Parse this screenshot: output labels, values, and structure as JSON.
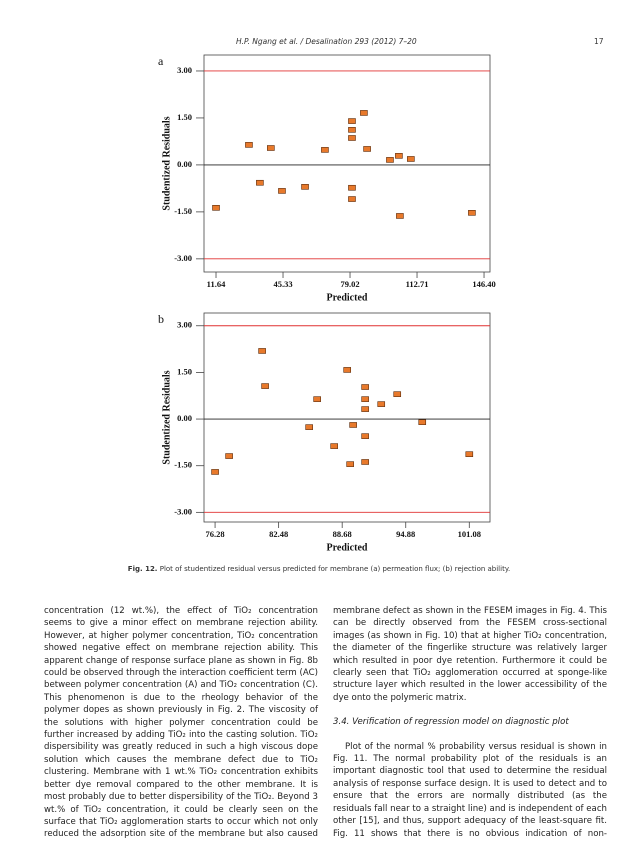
{
  "header": {
    "running_title": "H.P. Ngang et al. / Desalination 293 (2012) 7–20",
    "page": "17"
  },
  "chart_data": [
    {
      "type": "scatter",
      "panel": "a",
      "ylabel": "Studentized Residuals",
      "xlabel": "Predicted",
      "color": "#e8792b",
      "x": [
        11.64,
        28.2,
        33.7,
        39.2,
        44.8,
        56.4,
        66.4,
        80.0,
        80.0,
        80.0,
        80.0,
        80.0,
        86.0,
        87.6,
        99.1,
        103.6,
        104.1,
        109.6,
        140.3
      ],
      "values": [
        -1.37,
        0.64,
        -0.57,
        0.54,
        -0.83,
        -0.7,
        0.48,
        -0.73,
        1.4,
        1.12,
        0.86,
        -1.09,
        1.66,
        0.51,
        0.16,
        0.29,
        -1.63,
        0.19,
        -1.53
      ],
      "xlim": [
        5.6,
        149.4
      ],
      "ylim": [
        -3.42,
        3.51
      ],
      "xticks": [
        11.64,
        45.33,
        79.02,
        112.71,
        {
          "value": 146.4,
          "label": "146.40"
        }
      ],
      "yticks": [
        {
          "value": 3,
          "label": "3.00"
        },
        {
          "value": 1.5,
          "label": "1.50"
        },
        {
          "value": 0,
          "label": "0.00"
        },
        {
          "value": -1.5,
          "label": "-1.50"
        },
        {
          "value": -3,
          "label": "-3.00"
        }
      ]
    },
    {
      "type": "scatter",
      "panel": "b",
      "ylabel": "Studentized Residuals",
      "xlabel": "Predicted",
      "color": "#e8792b",
      "x": [
        76.28,
        77.65,
        80.87,
        81.16,
        85.46,
        86.24,
        87.9,
        89.17,
        89.46,
        89.75,
        90.92,
        90.92,
        90.92,
        90.92,
        90.92,
        92.49,
        94.05,
        96.49,
        101.08
      ],
      "values": [
        -1.7,
        -1.19,
        2.19,
        1.06,
        -0.26,
        0.64,
        -0.87,
        1.58,
        -1.45,
        -0.19,
        1.03,
        0.64,
        0.32,
        -0.55,
        -1.38,
        0.48,
        0.8,
        -0.1,
        -1.13
      ],
      "xlim": [
        75.2,
        103.1
      ],
      "ylim": [
        -3.31,
        3.41
      ],
      "xticks": [
        76.28,
        82.48,
        88.68,
        94.88,
        101.08
      ],
      "yticks": [
        {
          "value": 3,
          "label": "3.00"
        },
        {
          "value": 1.5,
          "label": "1.50"
        },
        {
          "value": 0,
          "label": "0.00"
        },
        {
          "value": -1.5,
          "label": "-1.50"
        },
        {
          "value": -3,
          "label": "-3.00"
        }
      ]
    }
  ],
  "caption": {
    "label": "Fig. 12.",
    "text": "Plot of studentized residual versus predicted for membrane (a) permeation flux; (b) rejection ability."
  },
  "left_column": [
    "concentration (12 wt.%), the effect of TiO₂ concentration seems to give a minor effect on membrane rejection ability. However, at higher polymer concentration, TiO₂ concentration showed negative effect on membrane rejection ability. This apparent change of response surface plane as shown in Fig. 8b could be observed through the interaction coefficient term (AC) between polymer concentration (A) and TiO₂ concentration (C). This phenomenon is due to the rheology behavior of the polymer dopes as shown previously in Fig. 2. The viscosity of the solutions with higher polymer concentration could be further increased by adding TiO₂ into the casting solution. TiO₂ dispersibility was greatly reduced in such a high viscous dope solution which causes the membrane defect due to TiO₂ clustering. Membrane with 1 wt.% TiO₂ concentration exhibits better dye removal compared to the other membrane. It is most probably due to better dispersibility of the TiO₂. Beyond 3 wt.% of TiO₂ concentration, it could be clearly seen on the surface that TiO₂ agglomeration starts to occur which not only reduced the adsorption site of the membrane but also caused"
  ],
  "right_column": {
    "paragraph": "membrane defect as shown in the FESEM images in Fig. 4. This can be directly observed from the FESEM cross-sectional images (as shown in Fig. 10) that at higher TiO₂ concentration, the diameter of the fingerlike structure was relatively larger which resulted in poor dye retention. Furthermore it could be clearly seen that TiO₂ agglomeration occurred at sponge-like structure layer which resulted in the lower accessibility of the dye onto the polymeric matrix.",
    "section_heading": "3.4. Verification of regression model on diagnostic plot",
    "section_paragraph": "Plot of the normal % probability versus residual is shown in Fig. 11. The normal probability plot of the residuals is an important diagnostic tool that used to determine the residual analysis of response surface design. It is used to detect and to ensure that the errors are normally distributed (as the residuals fall near to a straight line) and is independent of each other [15], and thus, support adequacy of the least-square fit. Fig. 11 shows that there is no obvious indication of non-"
  }
}
